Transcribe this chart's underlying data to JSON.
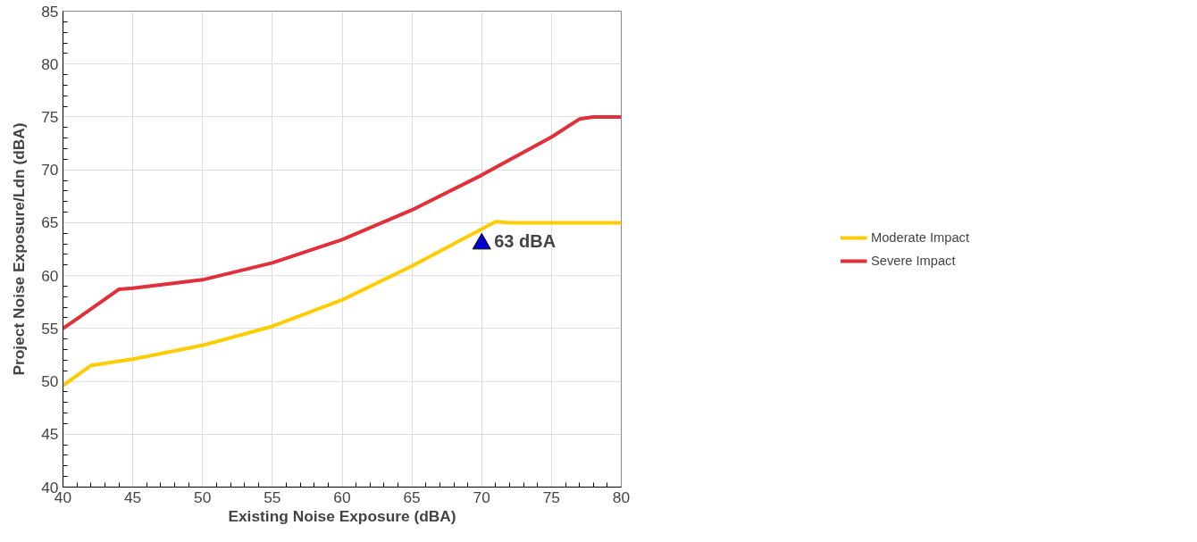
{
  "chart_data": {
    "type": "line",
    "xlabel": "Existing Noise Exposure (dBA)",
    "ylabel": "Project Noise Exposure/Ldn (dBA)",
    "xlim": [
      40,
      80
    ],
    "xticks": [
      40,
      45,
      50,
      55,
      60,
      65,
      70,
      75,
      80
    ],
    "ylim": [
      40,
      85
    ],
    "yticks": [
      40,
      45,
      50,
      55,
      60,
      65,
      70,
      75,
      80,
      85
    ],
    "grid": true,
    "legend": "right",
    "line_style": "solid",
    "marker": "none",
    "series": [
      {
        "name": "Moderate Impact",
        "color": "#ffcc00",
        "x": [
          40,
          42,
          45,
          50,
          55,
          60,
          65,
          70,
          71,
          72,
          80
        ],
        "values": [
          49.6,
          51.5,
          52.1,
          53.4,
          55.2,
          57.7,
          60.9,
          64.4,
          65.1,
          65,
          65
        ]
      },
      {
        "name": "Severe Impact",
        "color": "#e0303a",
        "x": [
          40,
          41,
          44,
          45,
          50,
          55,
          60,
          65,
          70,
          75,
          77,
          78,
          80
        ],
        "values": [
          55,
          55.9,
          58.7,
          58.8,
          59.6,
          61.2,
          63.4,
          66.2,
          69.5,
          73.1,
          74.8,
          75,
          75
        ]
      },
      {
        "type": "scatter",
        "marker": "triangle",
        "color": "#0000cc",
        "x": [
          70
        ],
        "values": [
          63
        ]
      }
    ],
    "annotations": [
      {
        "text": "63 dBA",
        "x": 70,
        "y": 63
      }
    ]
  }
}
